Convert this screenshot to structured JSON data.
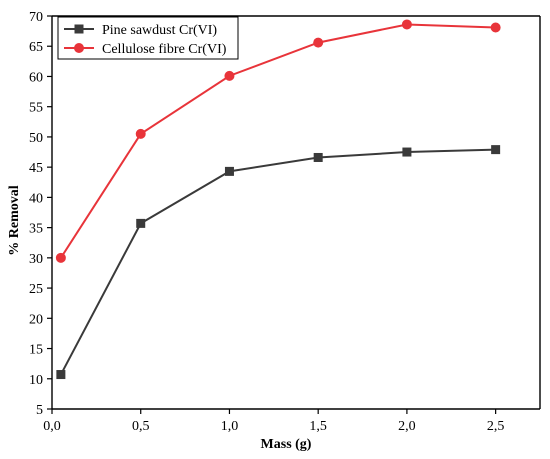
{
  "chart_data": {
    "type": "line",
    "xlabel": "Mass (g)",
    "ylabel": "% Removal",
    "xlim": [
      0.0,
      2.75
    ],
    "ylim": [
      5,
      70
    ],
    "x_ticks": [
      "0,0",
      "0,5",
      "1,0",
      "1,5",
      "2,0",
      "2,5"
    ],
    "x_tick_values": [
      0.0,
      0.5,
      1.0,
      1.5,
      2.0,
      2.5
    ],
    "y_ticks": [
      "5",
      "10",
      "15",
      "20",
      "25",
      "30",
      "35",
      "40",
      "45",
      "50",
      "55",
      "60",
      "65",
      "70"
    ],
    "y_tick_values": [
      5,
      10,
      15,
      20,
      25,
      30,
      35,
      40,
      45,
      50,
      55,
      60,
      65,
      70
    ],
    "x": [
      0.05,
      0.5,
      1.0,
      1.5,
      2.0,
      2.5
    ],
    "legend_position": "top-left",
    "grid": false,
    "series": [
      {
        "name": "Pine sawdust Cr(VI)",
        "marker": "square",
        "color": "#3a3a3a",
        "values": [
          10.7,
          35.7,
          44.3,
          46.6,
          47.5,
          47.9
        ]
      },
      {
        "name": "Cellulose fibre Cr(VI)",
        "marker": "circle",
        "color": "#e8343a",
        "values": [
          30.0,
          50.5,
          60.1,
          65.6,
          68.6,
          68.1
        ]
      }
    ]
  }
}
